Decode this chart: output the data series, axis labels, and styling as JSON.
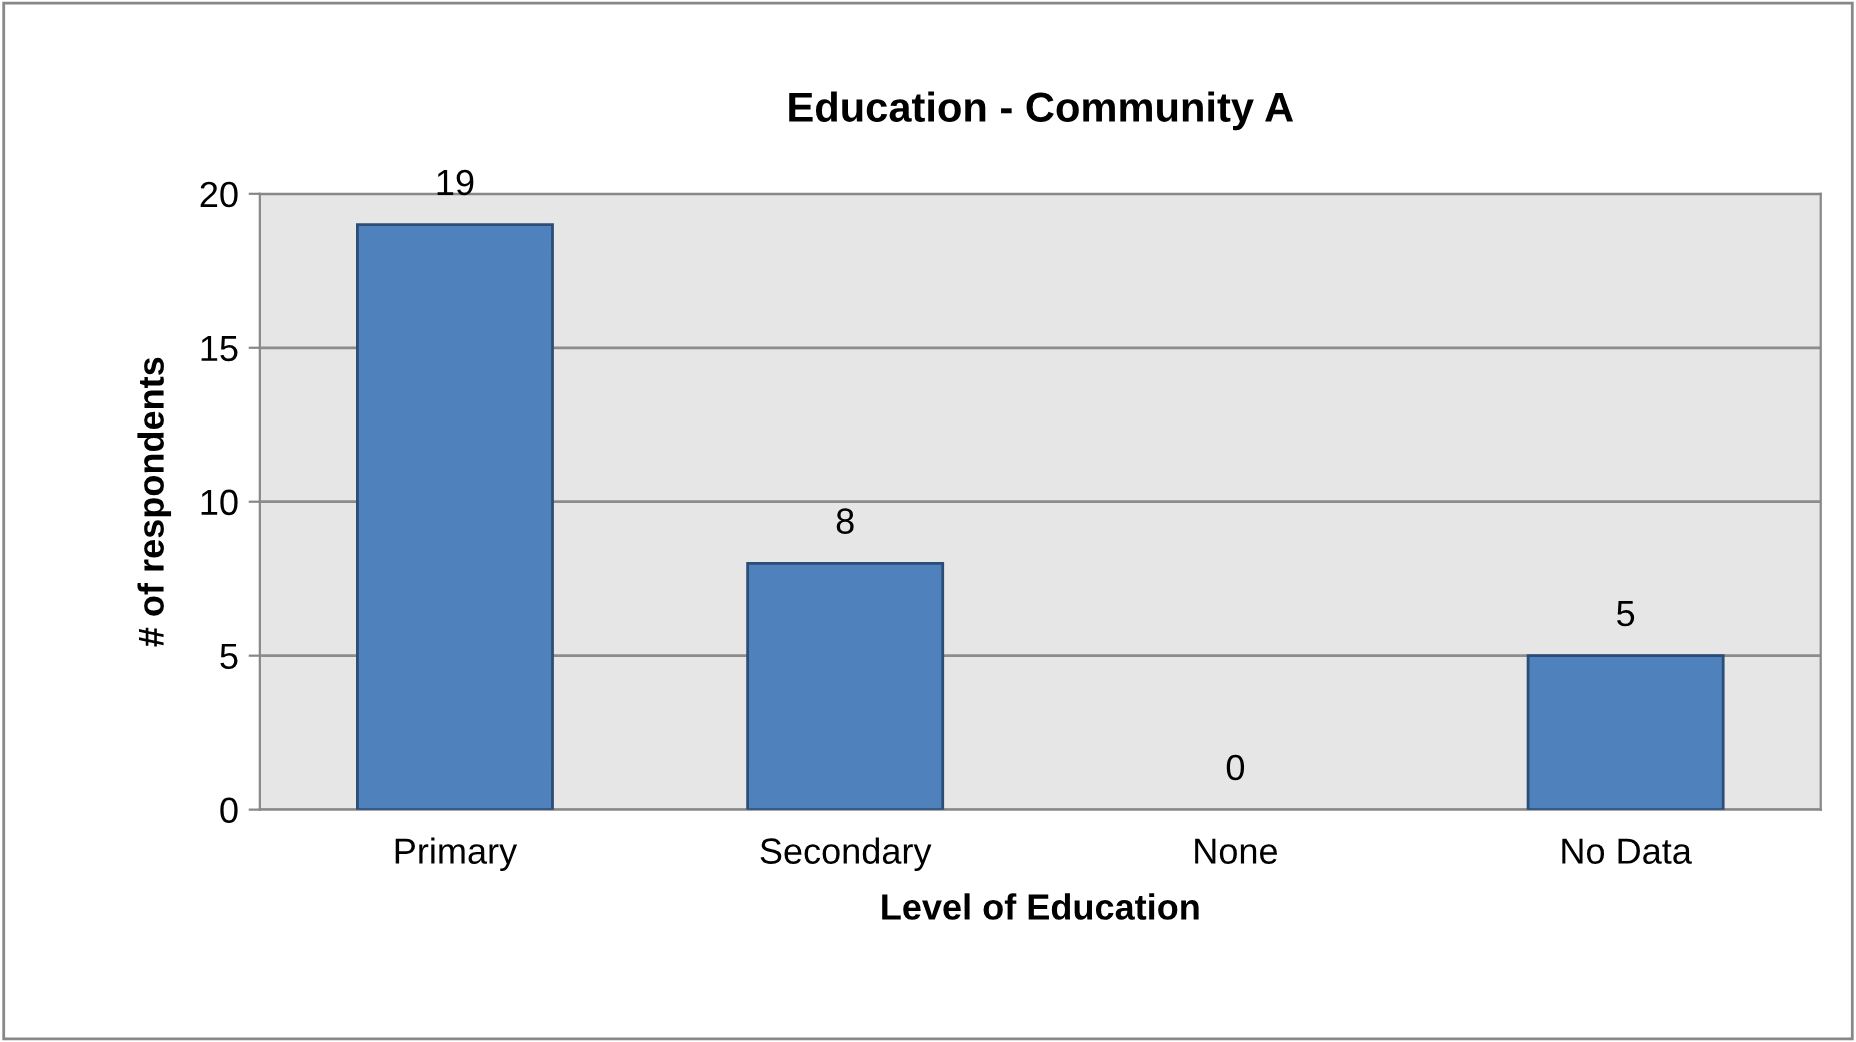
{
  "chart_data": {
    "type": "bar",
    "title": "Education - Community A",
    "xlabel": "Level of Education",
    "ylabel": "# of respondents",
    "categories": [
      "Primary",
      "Secondary",
      "None",
      "No Data"
    ],
    "values": [
      19,
      8,
      0,
      5
    ],
    "color": "#4f81bd",
    "ylim": [
      0,
      20
    ],
    "yticks": [
      0,
      5,
      10,
      15,
      20
    ],
    "grid": "y",
    "data_labels": true,
    "legend": false
  }
}
